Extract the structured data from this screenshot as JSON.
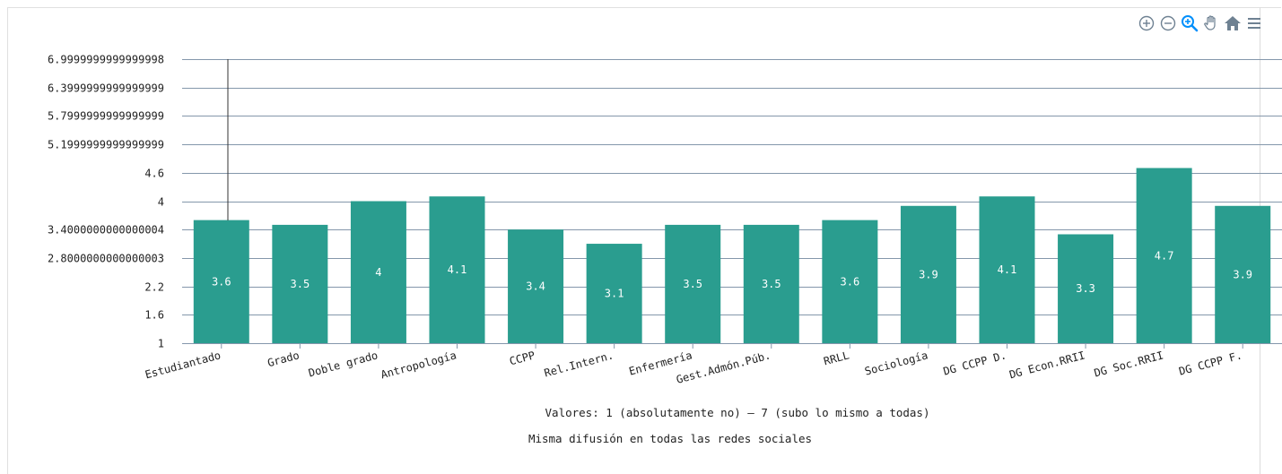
{
  "chart_data": {
    "type": "bar",
    "categories": [
      "Estudiantado",
      "Grado",
      "Doble grado",
      "Antropología",
      "CCPP",
      "Rel.Intern.",
      "Enfermería",
      "Gest.Admón.Púb.",
      "RRLL",
      "Sociología",
      "DG CCPP D.",
      "DG Econ.RRII",
      "DG Soc.RRII",
      "DG CCPP F."
    ],
    "values": [
      3.6,
      3.5,
      4,
      4.1,
      3.4,
      3.1,
      3.5,
      3.5,
      3.6,
      3.9,
      4.1,
      3.3,
      4.7,
      3.9
    ],
    "data_labels": [
      "3.6",
      "3.5",
      "4",
      "4.1",
      "3.4",
      "3.1",
      "3.5",
      "3.5",
      "3.6",
      "3.9",
      "4.1",
      "3.3",
      "4.7",
      "3.9"
    ],
    "yticks": [
      "1",
      "1.6",
      "2.2",
      "2.8000000000000003",
      "3.4000000000000004",
      "4",
      "4.6",
      "5.1999999999999999",
      "5.7999999999999999",
      "6.3999999999999999",
      "6.9999999999999998"
    ],
    "ylim": [
      1,
      7
    ],
    "xlabel": "Valores: 1 (absolutamente no) – 7 (subo lo mismo a todas)",
    "subtitle": "Misma difusión en todas las redes sociales",
    "bar_color": "#2a9d8f",
    "grid": true
  },
  "toolbar": {
    "icons": [
      "zoom-in-icon",
      "zoom-out-icon",
      "zoom-selection-icon",
      "pan-hand-icon",
      "home-reset-icon",
      "menu-icon"
    ],
    "colors": {
      "default": "#6e8192",
      "active": "#008ffb"
    }
  }
}
